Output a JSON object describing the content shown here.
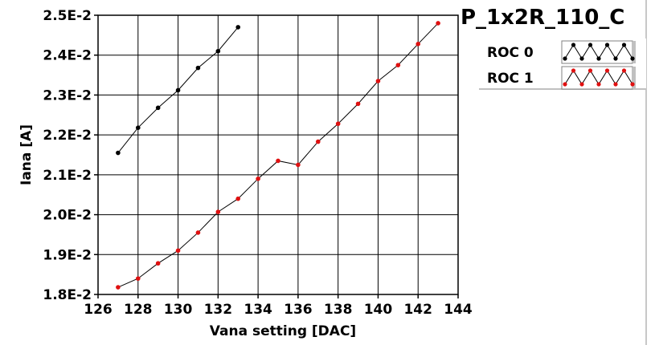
{
  "chart_data": {
    "type": "line",
    "title": "P_1x2R_110_C",
    "xlabel": "Vana setting [DAC]",
    "ylabel": "Iana [A]",
    "xlim": [
      126,
      144
    ],
    "ylim": [
      0.018,
      0.025
    ],
    "x_ticks": [
      126,
      128,
      130,
      132,
      134,
      136,
      138,
      140,
      142,
      144
    ],
    "x_tick_labels": [
      "126",
      "128",
      "130",
      "132",
      "134",
      "136",
      "138",
      "140",
      "142",
      "144"
    ],
    "y_ticks": [
      0.018,
      0.019,
      0.02,
      0.021,
      0.022,
      0.023,
      0.024,
      0.025
    ],
    "y_tick_labels": [
      "1.8E-2",
      "1.9E-2",
      "2.0E-2",
      "2.1E-2",
      "2.2E-2",
      "2.3E-2",
      "2.4E-2",
      "2.5E-2"
    ],
    "grid": true,
    "legend_position": "top-right, outside plot",
    "series": [
      {
        "name": "ROC 0",
        "color": "#000000",
        "x": [
          127,
          128,
          129,
          130,
          131,
          132,
          133
        ],
        "y": [
          0.02155,
          0.02218,
          0.02268,
          0.02312,
          0.02368,
          0.0241,
          0.0247
        ]
      },
      {
        "name": "ROC 1",
        "color": "#e01010",
        "x": [
          127,
          128,
          129,
          130,
          131,
          132,
          133,
          134,
          135,
          136,
          137,
          138,
          139,
          140,
          141,
          142,
          143
        ],
        "y": [
          0.01818,
          0.0184,
          0.01878,
          0.0191,
          0.01955,
          0.02007,
          0.0204,
          0.0209,
          0.02135,
          0.02125,
          0.02183,
          0.02228,
          0.02278,
          0.02335,
          0.02375,
          0.02428,
          0.0248
        ]
      }
    ]
  }
}
